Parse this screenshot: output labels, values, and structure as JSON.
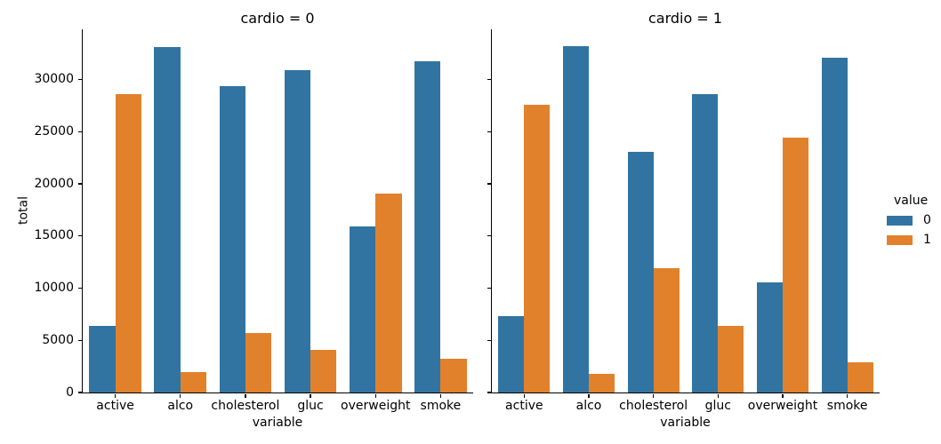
{
  "chart_data": {
    "type": "bar",
    "title": "",
    "categories": [
      "active",
      "alco",
      "cholesterol",
      "gluc",
      "overweight",
      "smoke"
    ],
    "xlabel": "variable",
    "ylabel": "total",
    "yticks": [
      0,
      5000,
      10000,
      15000,
      20000,
      25000,
      30000
    ],
    "ylim": [
      0,
      34814
    ],
    "grid": false,
    "legend_position": "right",
    "facets": [
      {
        "title": "cardio = 0",
        "series": [
          {
            "name": "0",
            "values": [
              6378,
              33080,
              29330,
              30894,
              15915,
              31781
            ]
          },
          {
            "name": "1",
            "values": [
              28643,
              1941,
              5691,
              4127,
              19106,
              3240
            ]
          }
        ]
      },
      {
        "title": "cardio = 1",
        "series": [
          {
            "name": "0",
            "values": [
              7361,
              33156,
              23055,
              28585,
              10539,
              32050
            ]
          },
          {
            "name": "1",
            "values": [
              27618,
              1823,
              11924,
              6394,
              24440,
              2929
            ]
          }
        ]
      }
    ],
    "legend": {
      "title": "value",
      "entries": [
        {
          "label": "0",
          "color": "#3274a1"
        },
        {
          "label": "1",
          "color": "#e1812c"
        }
      ]
    },
    "colors": {
      "spine": "#000000",
      "text": "#000000",
      "background": "#ffffff"
    }
  }
}
